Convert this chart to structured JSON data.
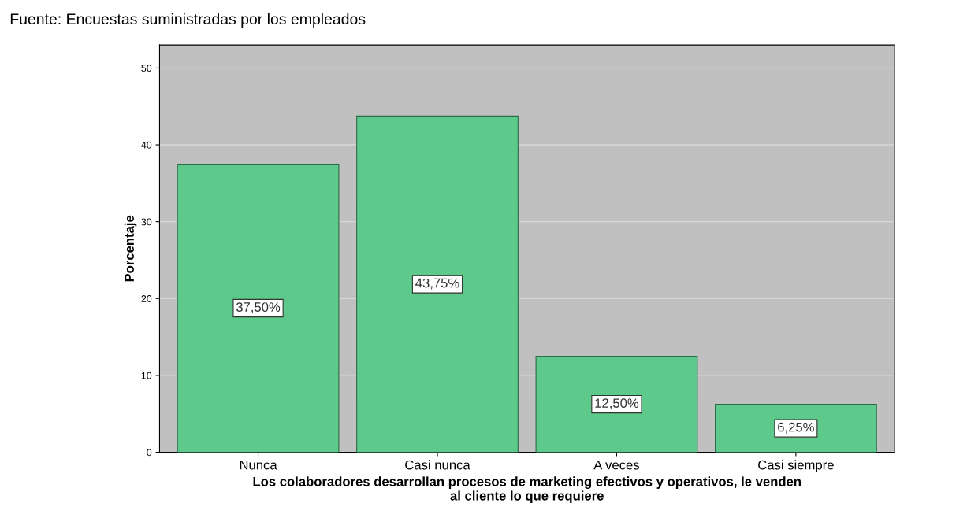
{
  "chart_data": {
    "type": "bar",
    "categories": [
      "Nunca",
      "Casi nunca",
      "A veces",
      "Casi siempre"
    ],
    "values": [
      37.5,
      43.75,
      12.5,
      6.25
    ],
    "value_labels": [
      "37,50%",
      "43,75%",
      "12,50%",
      "6,25%"
    ],
    "color": "#5dc98a",
    "xlabel": "Los colaboradores desarrollan procesos de marketing efectivos y operativos, le venden\nal cliente lo que requiere",
    "ylabel": "Porcentaje",
    "ylim": [
      0,
      53
    ],
    "yticks": [
      0,
      10,
      20,
      30,
      40,
      50
    ],
    "grid": "y",
    "annotations": [
      "Fuente: Encuestas suministradas por los empleados"
    ]
  }
}
